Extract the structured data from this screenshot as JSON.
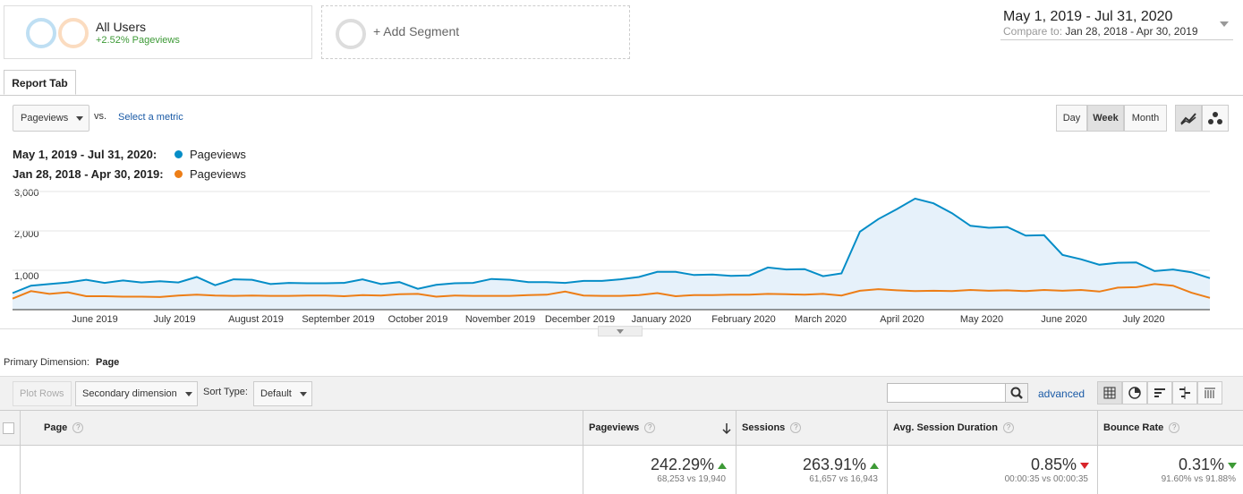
{
  "segments": {
    "main": {
      "title": "All Users",
      "subtitle": "+2.52% Pageviews"
    },
    "add_label": "+ Add Segment"
  },
  "date_range": {
    "main": "May 1, 2019 - Jul 31, 2020",
    "compare_label": "Compare to:",
    "compare_value": "Jan 28, 2018 - Apr 30, 2019"
  },
  "tabs": {
    "report_tab": "Report Tab"
  },
  "controls": {
    "metric": "Pageviews",
    "vs": "vs.",
    "select_metric": "Select a metric",
    "granularity": [
      "Day",
      "Week",
      "Month"
    ],
    "active_granularity": "Week"
  },
  "legend": [
    {
      "range": "May 1, 2019 - Jul 31, 2020:",
      "name": "Pageviews",
      "color": "#058dc7"
    },
    {
      "range": "Jan 28, 2018 - Apr 30, 2019:",
      "name": "Pageviews",
      "color": "#ed7e17"
    }
  ],
  "chart_data": {
    "type": "area",
    "ylim": [
      0,
      3000
    ],
    "y_ticks": [
      "3,000",
      "2,000",
      "1,000"
    ],
    "x_tick_labels": [
      "June 2019",
      "July 2019",
      "August 2019",
      "September 2019",
      "October 2019",
      "November 2019",
      "December 2019",
      "January 2020",
      "February 2020",
      "March 2020",
      "April 2020",
      "May 2020",
      "June 2020",
      "July 2020"
    ],
    "series": [
      {
        "name": "Pageviews",
        "values": [
          420,
          610,
          650,
          690,
          760,
          680,
          740,
          690,
          720,
          690,
          830,
          620,
          770,
          760,
          650,
          680,
          670,
          670,
          680,
          770,
          650,
          700,
          530,
          630,
          670,
          680,
          780,
          760,
          700,
          700,
          680,
          730,
          730,
          770,
          830,
          960,
          960,
          880,
          890,
          860,
          870,
          1070,
          1020,
          1030,
          850,
          920,
          1980,
          2300,
          2550,
          2820,
          2700,
          2450,
          2130,
          2080,
          2100,
          1880,
          1890,
          1390,
          1280,
          1140,
          1190,
          1200,
          980,
          1020,
          950,
          800
        ]
      },
      {
        "name": "Pageviews",
        "values": [
          280,
          470,
          400,
          440,
          340,
          340,
          330,
          330,
          320,
          360,
          380,
          360,
          350,
          360,
          350,
          350,
          360,
          360,
          340,
          370,
          360,
          390,
          400,
          330,
          360,
          350,
          350,
          350,
          370,
          380,
          460,
          360,
          350,
          350,
          370,
          420,
          340,
          370,
          370,
          380,
          380,
          400,
          390,
          380,
          400,
          360,
          480,
          520,
          490,
          470,
          480,
          470,
          500,
          480,
          490,
          470,
          500,
          480,
          500,
          460,
          560,
          570,
          650,
          610,
          430,
          300
        ]
      }
    ]
  },
  "primary_dimension": {
    "label": "Primary Dimension:",
    "value": "Page"
  },
  "table_toolbar": {
    "plot_rows": "Plot Rows",
    "secondary_dimension": "Secondary dimension",
    "sort_type_label": "Sort Type:",
    "sort_type_value": "Default",
    "search_placeholder": "",
    "advanced": "advanced"
  },
  "table": {
    "columns": [
      "Page",
      "Pageviews",
      "Sessions",
      "Avg. Session Duration",
      "Bounce Rate"
    ],
    "totals": [
      {
        "big": "242.29%",
        "small": "68,253 vs 19,940",
        "trend": "up"
      },
      {
        "big": "263.91%",
        "small": "61,657 vs 16,943",
        "trend": "up"
      },
      {
        "big": "0.85%",
        "small": "00:00:35 vs 00:00:35",
        "trend": "down-red"
      },
      {
        "big": "0.31%",
        "small": "91.60% vs 91.88%",
        "trend": "down-green"
      }
    ]
  }
}
